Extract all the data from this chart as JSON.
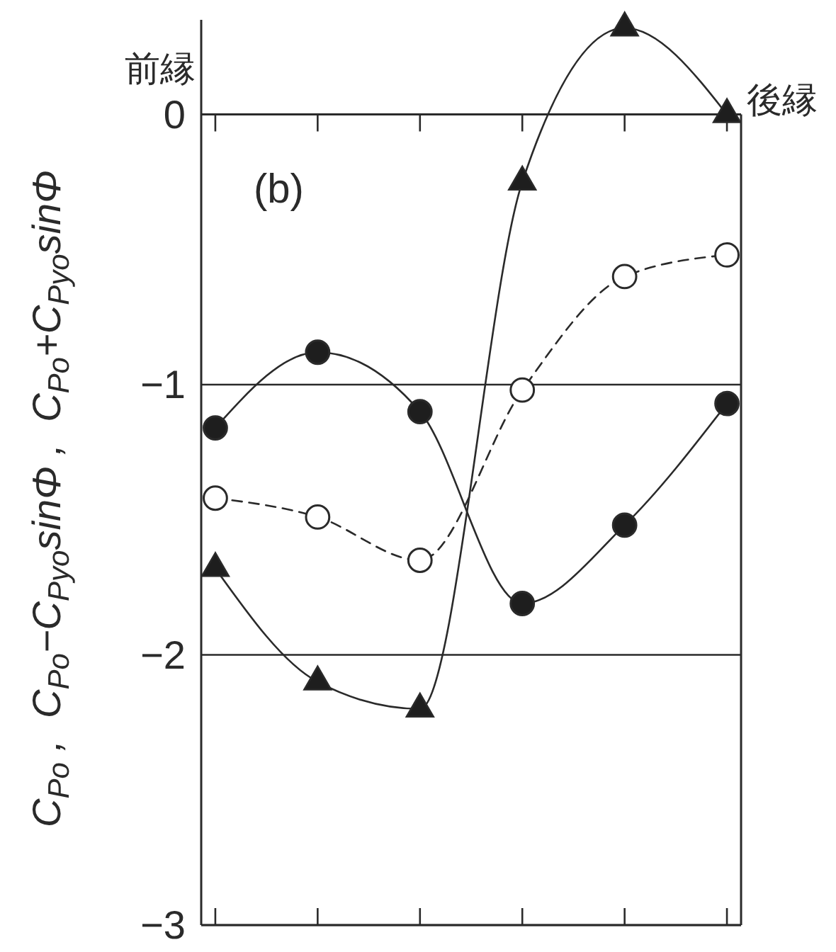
{
  "chart_data": {
    "type": "line",
    "ylabel": "C$_{Po}$ ,  C$_{Po}$−C$_{Pyo}$sinΦ ,  C$_{Po}$+C$_{Pyo}$sinΦ",
    "annotations": [
      "(b)",
      "前縁",
      "後縁"
    ],
    "categories": [
      null,
      null,
      null,
      null,
      null,
      null
    ],
    "series": [
      {
        "color": "#1e1e1e",
        "marker": "circle",
        "line_style": "solid",
        "values": [
          -1.16,
          -0.88,
          -1.1,
          -1.81,
          -1.52,
          -1.07
        ]
      },
      {
        "color": "#ffffff",
        "marker": "circle",
        "line_style": "dashed",
        "values": [
          -1.42,
          -1.49,
          -1.65,
          -1.02,
          -0.6,
          -0.52
        ]
      },
      {
        "color": "#1e1e1e",
        "marker": "triangle",
        "line_style": "solid",
        "values": [
          -1.68,
          -2.1,
          -2.2,
          -0.25,
          0.32,
          0
        ]
      }
    ],
    "ylim": [
      -3,
      0.35
    ],
    "yticks": [
      0,
      -1,
      -2,
      -3
    ],
    "grid": "y"
  }
}
